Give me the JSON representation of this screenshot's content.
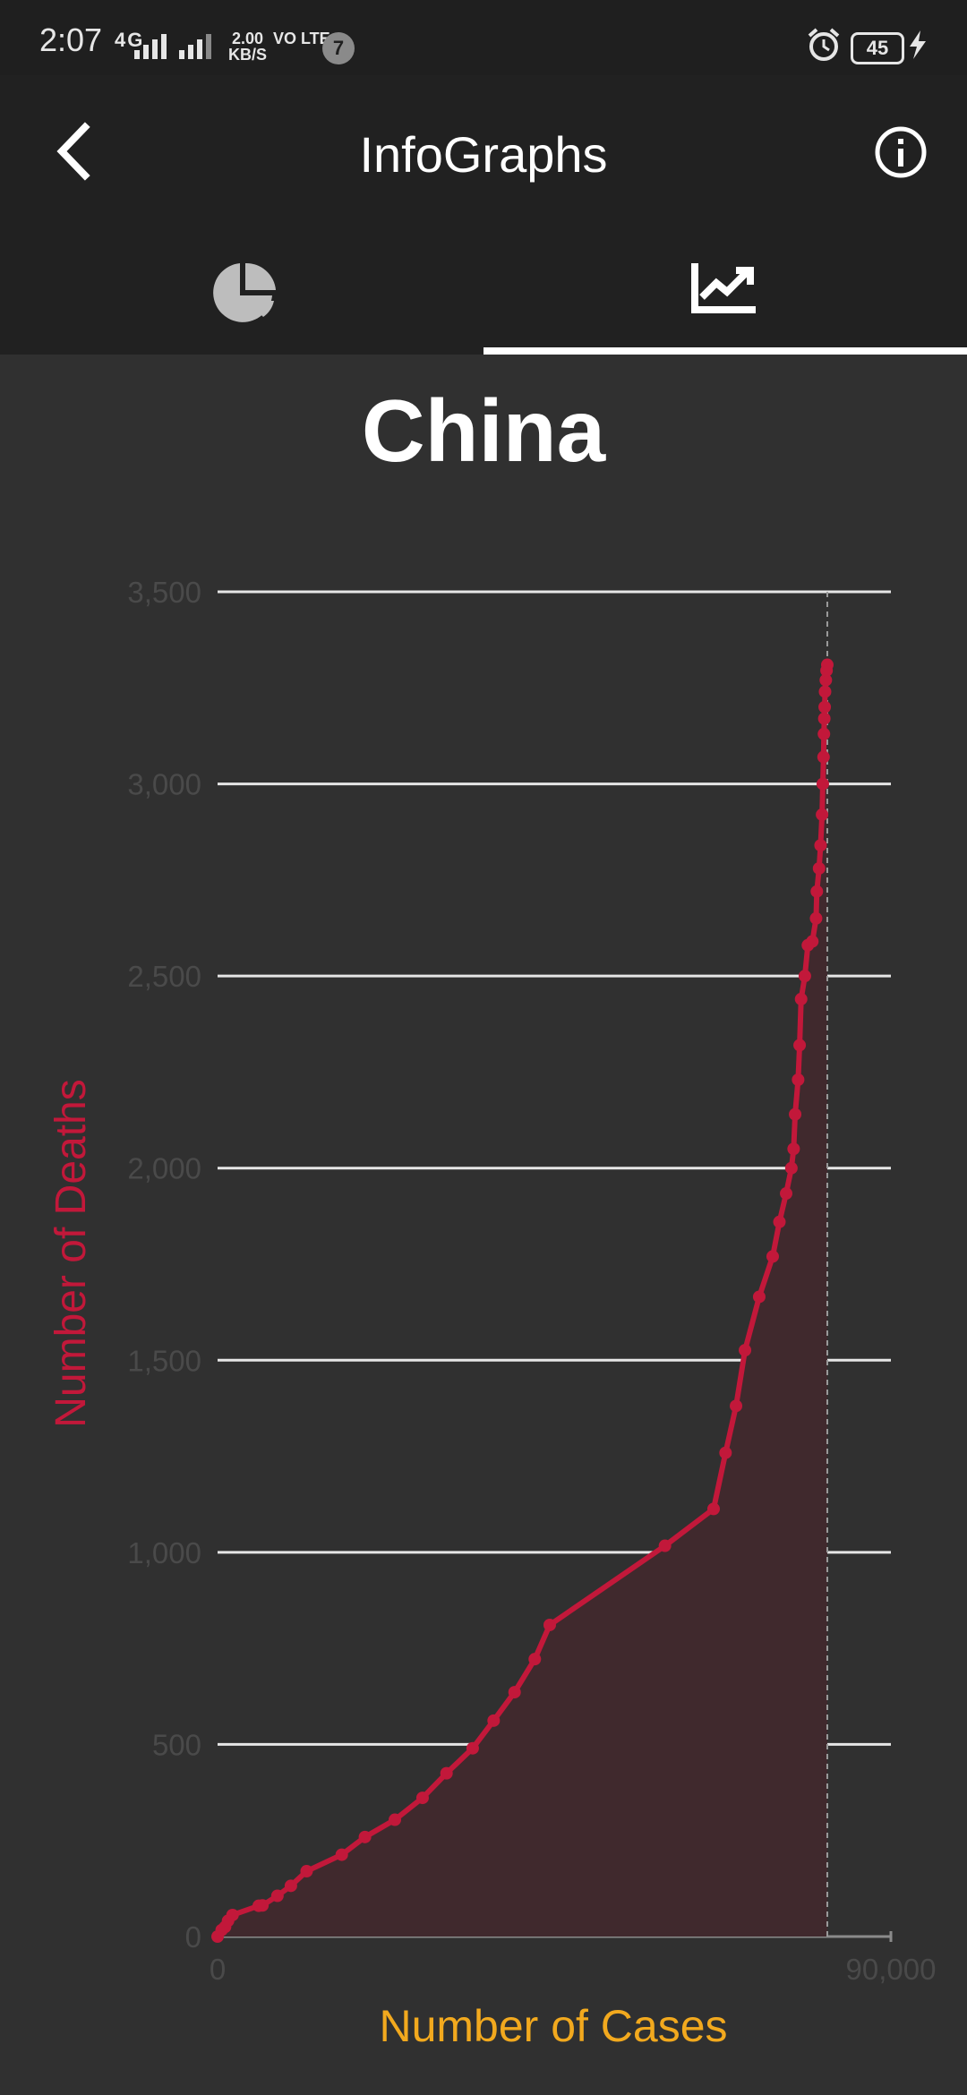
{
  "status_bar": {
    "time": "2:07",
    "network": "4G",
    "speed_value": "2.00",
    "speed_unit": "KB/S",
    "volte": "VO LTE",
    "notification_count": "7",
    "battery": "45"
  },
  "app_bar": {
    "title": "InfoGraphs",
    "back_icon": "back-arrow-icon",
    "info_icon": "info-icon"
  },
  "tabs": [
    {
      "icon": "pie-chart-icon",
      "selected": false
    },
    {
      "icon": "line-chart-icon",
      "selected": true
    }
  ],
  "colors": {
    "line": "#c2183a",
    "area": "#40292d",
    "xlabel": "#f2a91e",
    "ylabel": "#c2183a",
    "gridline": "#e6e6e6",
    "ticks": "#4a4a4a"
  },
  "chart_data": {
    "type": "line",
    "title": "China",
    "xlabel": "Number of Cases",
    "ylabel": "Number of Deaths",
    "xlim": [
      0,
      90000
    ],
    "ylim": [
      0,
      3500
    ],
    "y_ticks": [
      "0",
      "500",
      "1,000",
      "1,500",
      "2,000",
      "2,500",
      "3,000",
      "3,500"
    ],
    "x_ticks": [
      "0",
      "90,000"
    ],
    "grid": true,
    "series": [
      {
        "values": [
          [
            0,
            0
          ],
          [
            550,
            17
          ],
          [
            1000,
            25
          ],
          [
            1400,
            41
          ],
          [
            2000,
            56
          ],
          [
            5500,
            80
          ],
          [
            6000,
            81
          ],
          [
            8000,
            106
          ],
          [
            9800,
            132
          ],
          [
            11900,
            170
          ],
          [
            16600,
            213
          ],
          [
            19700,
            259
          ],
          [
            23700,
            304
          ],
          [
            27400,
            361
          ],
          [
            30600,
            425
          ],
          [
            34100,
            490
          ],
          [
            36900,
            562
          ],
          [
            39700,
            636
          ],
          [
            42400,
            722
          ],
          [
            44400,
            811
          ],
          [
            59800,
            1017
          ],
          [
            66300,
            1113
          ],
          [
            67900,
            1259
          ],
          [
            69300,
            1381
          ],
          [
            70500,
            1526
          ],
          [
            72400,
            1665
          ],
          [
            74200,
            1770
          ],
          [
            75100,
            1860
          ],
          [
            76000,
            1934
          ],
          [
            76700,
            2000
          ],
          [
            77000,
            2050
          ],
          [
            77200,
            2140
          ],
          [
            77600,
            2230
          ],
          [
            77800,
            2320
          ],
          [
            78000,
            2440
          ],
          [
            78500,
            2500
          ],
          [
            78900,
            2580
          ],
          [
            79500,
            2590
          ],
          [
            80000,
            2650
          ],
          [
            80100,
            2720
          ],
          [
            80400,
            2780
          ],
          [
            80600,
            2840
          ],
          [
            80800,
            2920
          ],
          [
            80900,
            3000
          ],
          [
            81000,
            3070
          ],
          [
            81050,
            3130
          ],
          [
            81100,
            3170
          ],
          [
            81150,
            3200
          ],
          [
            81200,
            3240
          ],
          [
            81300,
            3270
          ],
          [
            81400,
            3295
          ],
          [
            81500,
            3310
          ]
        ]
      }
    ],
    "hover_x": 81500
  }
}
